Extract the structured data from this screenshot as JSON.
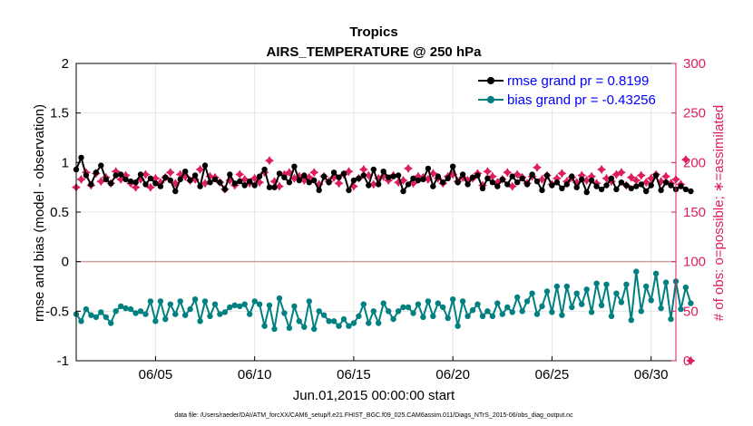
{
  "colors": {
    "rmse": "#000000",
    "bias": "#008080",
    "obs": "#dc1f5a",
    "zero_line": "#c8a0a0",
    "legend_text": "#0000ff",
    "axis": "#000000",
    "grid": "#e6e6e6"
  },
  "footer": {
    "text": "data file: /Users/raeder/DAI/ATM_forcXX/CAM6_setup/f.e21.FHIST_BGC.f09_025.CAM6assim.011/Diags_NTrS_2015-06/obs_diag_output.nc"
  },
  "chart_data": {
    "type": "line",
    "title": "Tropics",
    "subtitle": "AIRS_TEMPERATURE @ 250 hPa",
    "xlabel": "Jun.01,2015 00:00:00 start",
    "ylabel": "rmse and bias (model - observation)",
    "y2label": "# of obs: o=possible; ∗=assimilated",
    "xlim": [
      1.0,
      31.25
    ],
    "ylim": [
      -1,
      2
    ],
    "y2lim": [
      0,
      300
    ],
    "xticks": [
      5,
      10,
      15,
      20,
      25,
      30
    ],
    "xtick_labels": [
      "06/05",
      "06/10",
      "06/15",
      "06/20",
      "06/25",
      "06/30"
    ],
    "yticks": [
      -1,
      -0.5,
      0,
      0.5,
      1,
      1.5,
      2
    ],
    "ytick_labels": [
      "-1",
      "-0.5",
      "0",
      "0.5",
      "1",
      "1.5",
      "2"
    ],
    "y2ticks": [
      0,
      50,
      100,
      150,
      200,
      250,
      300
    ],
    "y2tick_labels": [
      "0",
      "50",
      "100",
      "150",
      "200",
      "250",
      "300"
    ],
    "legend_position": "top-right",
    "x_step": 0.25,
    "series": [
      {
        "name": "rmse",
        "legend": "rmse grand pr = 0.8199",
        "axis": "left",
        "marker": "circle",
        "values": [
          0.93,
          1.05,
          0.87,
          0.78,
          0.9,
          0.97,
          0.83,
          0.79,
          0.87,
          0.88,
          0.83,
          0.81,
          0.8,
          0.88,
          0.78,
          0.84,
          0.79,
          0.76,
          0.85,
          0.82,
          0.71,
          0.83,
          0.91,
          0.82,
          0.87,
          0.76,
          0.97,
          0.8,
          0.83,
          0.8,
          0.73,
          0.88,
          0.79,
          0.81,
          0.77,
          0.81,
          0.77,
          0.86,
          0.93,
          0.75,
          0.75,
          0.89,
          0.85,
          0.8,
          0.96,
          0.82,
          0.87,
          0.8,
          0.82,
          0.72,
          0.86,
          0.8,
          0.9,
          0.85,
          0.89,
          0.72,
          0.82,
          0.84,
          0.87,
          0.77,
          0.93,
          0.78,
          0.91,
          0.85,
          0.86,
          0.87,
          0.71,
          0.78,
          0.84,
          0.82,
          0.83,
          0.94,
          0.76,
          0.86,
          0.8,
          0.84,
          0.96,
          0.8,
          0.88,
          0.78,
          0.85,
          0.87,
          0.74,
          0.84,
          0.8,
          0.76,
          0.83,
          0.78,
          0.86,
          0.8,
          0.84,
          0.78,
          0.88,
          0.81,
          0.72,
          0.87,
          0.77,
          0.8,
          0.74,
          0.78,
          0.86,
          0.75,
          0.83,
          0.7,
          0.82,
          0.76,
          0.73,
          0.77,
          0.84,
          0.73,
          0.8,
          0.77,
          0.74,
          0.76,
          0.78,
          0.71,
          0.77,
          0.87,
          0.72,
          0.8,
          0.77,
          0.73,
          0.76,
          0.73,
          0.71
        ]
      },
      {
        "name": "bias",
        "legend": "bias grand pr = -0.43256",
        "axis": "left",
        "marker": "circle",
        "values": [
          -0.53,
          -0.6,
          -0.48,
          -0.54,
          -0.56,
          -0.51,
          -0.56,
          -0.62,
          -0.5,
          -0.45,
          -0.47,
          -0.48,
          -0.52,
          -0.5,
          -0.53,
          -0.4,
          -0.6,
          -0.4,
          -0.58,
          -0.43,
          -0.53,
          -0.4,
          -0.54,
          -0.48,
          -0.38,
          -0.6,
          -0.4,
          -0.55,
          -0.43,
          -0.53,
          -0.51,
          -0.46,
          -0.44,
          -0.45,
          -0.43,
          -0.53,
          -0.4,
          -0.43,
          -0.65,
          -0.44,
          -0.68,
          -0.37,
          -0.52,
          -0.67,
          -0.45,
          -0.6,
          -0.66,
          -0.4,
          -0.68,
          -0.5,
          -0.54,
          -0.6,
          -0.6,
          -0.65,
          -0.58,
          -0.65,
          -0.62,
          -0.55,
          -0.43,
          -0.62,
          -0.5,
          -0.62,
          -0.42,
          -0.5,
          -0.58,
          -0.5,
          -0.46,
          -0.46,
          -0.52,
          -0.43,
          -0.56,
          -0.4,
          -0.55,
          -0.42,
          -0.46,
          -0.57,
          -0.38,
          -0.65,
          -0.4,
          -0.55,
          -0.49,
          -0.43,
          -0.55,
          -0.5,
          -0.55,
          -0.42,
          -0.53,
          -0.46,
          -0.51,
          -0.36,
          -0.5,
          -0.4,
          -0.32,
          -0.53,
          -0.45,
          -0.3,
          -0.51,
          -0.25,
          -0.54,
          -0.25,
          -0.46,
          -0.32,
          -0.43,
          -0.28,
          -0.51,
          -0.22,
          -0.44,
          -0.23,
          -0.55,
          -0.32,
          -0.41,
          -0.23,
          -0.59,
          -0.1,
          -0.5,
          -0.25,
          -0.39,
          -0.12,
          -0.47,
          -0.21,
          -0.58,
          -0.2,
          -0.48,
          -0.26,
          -0.42
        ]
      },
      {
        "name": "obs",
        "legend": "",
        "axis": "right",
        "marker": "star",
        "values": [
          175,
          183,
          190,
          177,
          189,
          181,
          185,
          179,
          191,
          183,
          187,
          179,
          175,
          183,
          188,
          175,
          184,
          180,
          185,
          190,
          179,
          188,
          186,
          182,
          183,
          193,
          179,
          186,
          185,
          180,
          173,
          182,
          177,
          188,
          183,
          179,
          184,
          180,
          190,
          202,
          181,
          176,
          188,
          190,
          184,
          186,
          182,
          185,
          190,
          178,
          186,
          181,
          185,
          179,
          188,
          191,
          176,
          184,
          193,
          187,
          178,
          184,
          186,
          182,
          187,
          180,
          182,
          194,
          179,
          186,
          185,
          183,
          189,
          184,
          179,
          186,
          188,
          181,
          185,
          182,
          184,
          189,
          177,
          191,
          186,
          180,
          183,
          190,
          176,
          188,
          185,
          179,
          186,
          195,
          183,
          187,
          178,
          184,
          189,
          181,
          185,
          180,
          187,
          182,
          186,
          179,
          193,
          184,
          181,
          188,
          190,
          177,
          185,
          182,
          187,
          180,
          184,
          188,
          181,
          186,
          179,
          183,
          178,
          203,
          0
        ]
      }
    ]
  }
}
